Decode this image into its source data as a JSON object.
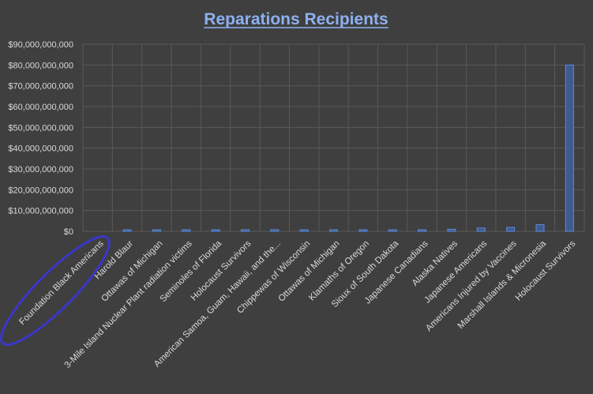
{
  "colors": {
    "background": "#3f3f3f",
    "gridline": "#5a5a5a",
    "bar_fill": "#3f5a8c",
    "bar_stroke": "#5b8be0",
    "text": "#d9d9d9",
    "title": "#8db0f0",
    "annotation": "#3b36c8"
  },
  "chart_data": {
    "type": "bar",
    "title": "Reparations Recipients",
    "xlabel": "",
    "ylabel": "",
    "ylim": [
      0,
      90000000000
    ],
    "y_ticks": [
      "$0",
      "$10,000,000,000",
      "$20,000,000,000",
      "$30,000,000,000",
      "$40,000,000,000",
      "$50,000,000,000",
      "$60,000,000,000",
      "$70,000,000,000",
      "$80,000,000,000",
      "$90,000,000,000"
    ],
    "grid": true,
    "legend": "none",
    "categories": [
      "Foundation Black Americans",
      "Harold Blaur",
      "Ottawas of Michigan",
      "3-Mile Island Nuclear Plant radiation victims",
      "Seminoles of Florida",
      "Holocaust Survivors",
      "American Samoa, Guam, Hawaii, and the...",
      "Chippewas of Wisconsin",
      "Ottawas of Michigan",
      "Klamaths of Oregon",
      "Sioux of South Dakota",
      "Japanese Canadians",
      "Alaska Natives",
      "Japanese Americans",
      "Americans Injured by Vaccines",
      "Marshall Islands & Micronesia",
      "Holocaust Survivors"
    ],
    "values": [
      0,
      100000000,
      200000000,
      300000000,
      300000000,
      300000000,
      300000000,
      300000000,
      300000000,
      300000000,
      300000000,
      300000000,
      1000000000,
      1600000000,
      1900000000,
      3200000000,
      80000000000
    ],
    "annotation": "circle-around-category-0"
  }
}
